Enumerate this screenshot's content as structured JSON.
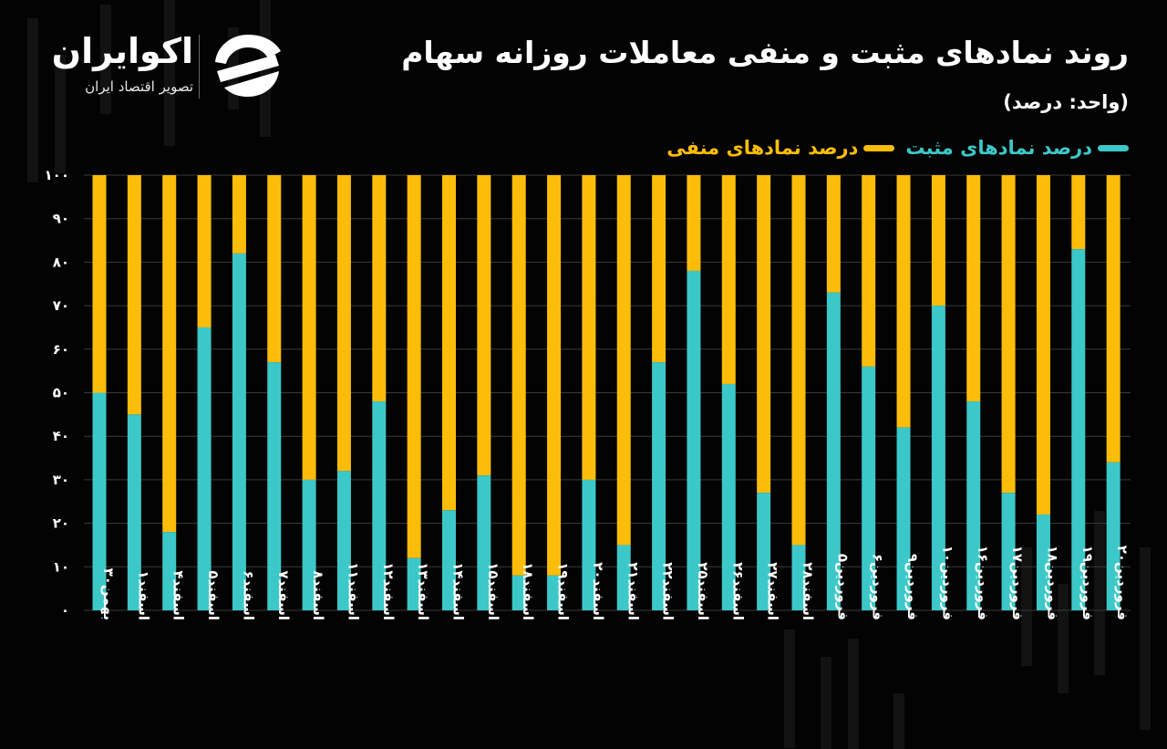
{
  "title": "روند نمادهای مثبت و منفی معاملات روزانه سهام",
  "unit": "(واحد: درصد)",
  "brand": {
    "name": "اکوایران",
    "tagline": "تصویر اقتصاد ایران"
  },
  "colors": {
    "positive": "#3cc8c8",
    "negative": "#fcbd0a",
    "background": "#030303",
    "grid": "#3a3a3a"
  },
  "chart_data": {
    "type": "bar",
    "stacked": true,
    "categories": [
      "بهمن۳۰",
      "اسفند۱",
      "اسفند۴",
      "اسفند۵",
      "اسفند۶",
      "اسفند۷",
      "اسفند۸",
      "اسفند۱۱",
      "اسفند۱۲",
      "اسفند۱۳",
      "اسفند۱۴",
      "اسفند۱۵",
      "اسفند۱۸",
      "اسفند۱۹",
      "اسفند۲۰",
      "اسفند۲۱",
      "اسفند۲۲",
      "اسفند۲۵",
      "اسفند۲۶",
      "اسفند۲۷",
      "اسفند۲۸",
      "فروردین۵",
      "فروردین۶",
      "فروردین۹",
      "فروردین۱۰",
      "فروردین۱۶",
      "فروردین۱۷",
      "فروردین۱۸",
      "فروردین۱۹",
      "فروردین۲۰"
    ],
    "series": [
      {
        "name": "درصد نمادهای مثبت",
        "color": "#3cc8c8",
        "values": [
          50,
          45,
          18,
          65,
          82,
          57,
          30,
          32,
          48,
          12,
          23,
          31,
          8,
          8,
          30,
          15,
          57,
          78,
          52,
          27,
          15,
          73,
          56,
          42,
          70,
          48,
          27,
          22,
          83,
          34
        ]
      },
      {
        "name": "درصد نمادهای منفی",
        "color": "#fcbd0a",
        "values": [
          50,
          55,
          82,
          35,
          18,
          43,
          70,
          68,
          52,
          88,
          77,
          69,
          92,
          92,
          70,
          85,
          43,
          22,
          48,
          73,
          85,
          27,
          44,
          58,
          30,
          52,
          73,
          78,
          17,
          66
        ]
      }
    ],
    "y_ticks": [
      "۰",
      "۱۰",
      "۲۰",
      "۳۰",
      "۴۰",
      "۵۰",
      "۶۰",
      "۷۰",
      "۸۰",
      "۹۰",
      "۱۰۰"
    ],
    "ylim": [
      0,
      100
    ],
    "grid": true,
    "legend": "top-right"
  }
}
